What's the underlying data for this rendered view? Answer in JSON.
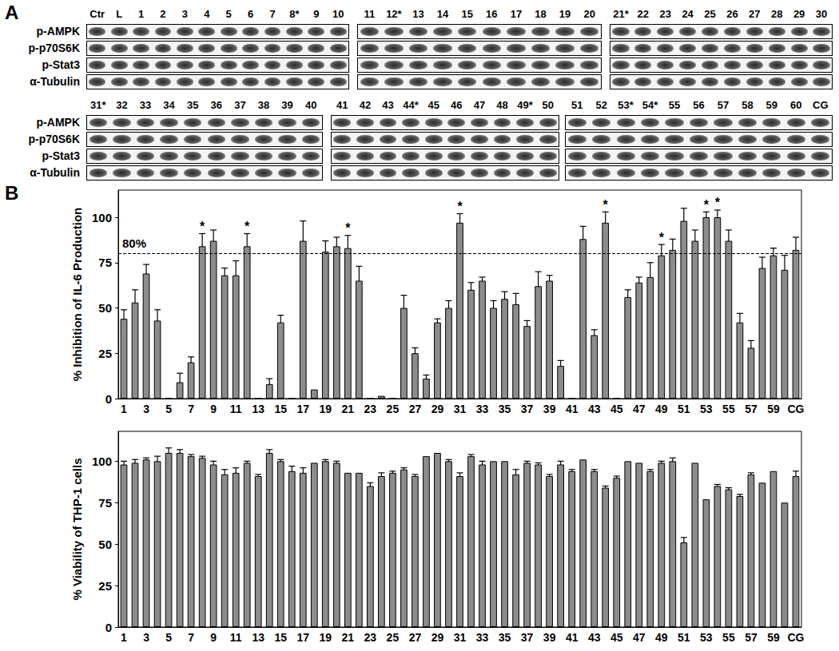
{
  "panel_labels": [
    "A",
    "B"
  ],
  "blot": {
    "proteins": [
      "p-AMPK",
      "p-p70S6K",
      "p-Stat3",
      "α-Tubulin"
    ],
    "rows": [
      [
        [
          "Ctr",
          "L",
          "1",
          "2",
          "3",
          "4",
          "5",
          "6",
          "7",
          "8*",
          "9",
          "10"
        ],
        [
          "11",
          "12*",
          "13",
          "14",
          "15",
          "16",
          "17",
          "18",
          "19",
          "20"
        ],
        [
          "21*",
          "22",
          "23",
          "24",
          "25",
          "26",
          "27",
          "28",
          "29",
          "30"
        ]
      ],
      [
        [
          "31*",
          "32",
          "33",
          "34",
          "35",
          "36",
          "37",
          "38",
          "39",
          "40"
        ],
        [
          "41",
          "42",
          "43",
          "44*",
          "45",
          "46",
          "47",
          "48",
          "49*",
          "50"
        ],
        [
          "51",
          "52",
          "53*",
          "54*",
          "55",
          "56",
          "57",
          "58",
          "59",
          "60",
          "CG"
        ]
      ]
    ]
  },
  "chart_data": [
    {
      "type": "bar",
      "y_label": "% Inhibition of IL-6 Production",
      "categories": [
        "1",
        null,
        "3",
        null,
        "5",
        null,
        "7",
        null,
        "9",
        null,
        "11",
        null,
        "13",
        null,
        "15",
        null,
        "17",
        null,
        "19",
        null,
        "21",
        null,
        "23",
        null,
        "25",
        null,
        "27",
        null,
        "29",
        null,
        "31",
        null,
        "33",
        null,
        "35",
        null,
        "37",
        null,
        "39",
        null,
        "41",
        null,
        "43",
        null,
        "45",
        null,
        "47",
        null,
        "49",
        null,
        "51",
        null,
        "53",
        null,
        "55",
        null,
        "57",
        null,
        "59",
        null,
        "CG"
      ],
      "values": [
        44,
        53,
        69,
        43,
        0,
        9,
        20,
        84,
        87,
        68,
        68,
        84,
        0,
        8,
        42,
        0,
        87,
        5,
        81,
        84,
        83,
        65,
        0,
        1.5,
        0,
        50,
        25,
        11,
        42,
        50,
        97,
        60,
        65,
        50,
        55,
        52,
        40,
        62,
        65,
        18,
        0,
        88,
        35,
        97,
        0,
        56,
        64,
        67,
        79,
        82,
        98,
        87,
        100,
        100,
        87,
        42,
        28,
        72,
        79,
        71,
        82
      ],
      "errors": [
        5,
        7,
        5,
        6,
        0,
        5,
        3,
        7,
        6,
        4,
        8,
        7,
        0,
        3,
        4,
        0,
        11,
        0,
        6,
        5,
        7,
        8,
        0,
        0,
        0,
        7,
        3,
        2,
        2,
        4,
        5,
        4,
        2,
        4,
        4,
        6,
        3,
        8,
        3,
        3,
        0,
        7,
        3,
        6,
        0,
        4,
        3,
        8,
        6,
        6,
        7,
        6,
        3,
        4,
        6,
        5,
        4,
        6,
        4,
        8,
        7
      ],
      "marks": [
        null,
        null,
        null,
        null,
        null,
        null,
        null,
        "*",
        null,
        null,
        null,
        "*",
        null,
        null,
        null,
        null,
        null,
        null,
        null,
        null,
        "*",
        null,
        null,
        null,
        null,
        null,
        null,
        null,
        null,
        null,
        "*",
        null,
        null,
        null,
        null,
        null,
        null,
        null,
        null,
        null,
        null,
        null,
        null,
        "*",
        null,
        null,
        null,
        null,
        "*",
        null,
        null,
        null,
        "*",
        "*",
        null,
        null,
        null,
        null,
        null,
        null,
        null
      ],
      "reference_line": {
        "value": 80,
        "label": "80%",
        "line_style": "dashed"
      },
      "color": "#8c8c8c",
      "ylim": [
        0,
        115
      ],
      "yticks": [
        0,
        25,
        50,
        75,
        100
      ],
      "grid": false
    },
    {
      "type": "bar",
      "y_label": "% Viability of THP-1 cells",
      "categories": [
        "1",
        null,
        "3",
        null,
        "5",
        null,
        "7",
        null,
        "9",
        null,
        "11",
        null,
        "13",
        null,
        "15",
        null,
        "17",
        null,
        "19",
        null,
        "21",
        null,
        "23",
        null,
        "25",
        null,
        "27",
        null,
        "29",
        null,
        "31",
        null,
        "33",
        null,
        "35",
        null,
        "37",
        null,
        "39",
        null,
        "41",
        null,
        "43",
        null,
        "45",
        null,
        "47",
        null,
        "49",
        null,
        "51",
        null,
        "53",
        null,
        "55",
        null,
        "57",
        null,
        "59",
        null,
        "CG"
      ],
      "values": [
        98,
        99,
        101,
        100,
        105,
        105,
        103,
        102,
        98,
        92,
        93,
        99,
        91,
        105,
        100,
        94,
        93,
        99,
        100,
        99,
        93,
        93,
        85,
        91,
        93,
        95,
        91,
        103,
        105,
        100,
        91,
        103,
        98,
        100,
        100,
        92,
        99,
        98,
        91,
        98,
        94,
        101,
        94,
        84,
        90,
        100,
        99,
        94,
        99,
        100,
        51,
        99,
        77,
        85,
        83,
        79,
        92,
        87,
        94,
        75,
        91
      ],
      "errors": [
        2,
        2,
        1,
        3,
        3,
        2,
        1,
        1,
        2,
        3,
        3,
        1,
        1,
        2,
        1,
        3,
        3,
        0,
        1,
        1,
        0,
        0,
        2,
        2,
        1,
        1,
        1,
        0,
        0,
        1,
        2,
        1,
        2,
        0,
        0,
        3,
        1,
        1,
        1,
        2,
        1,
        0,
        1,
        1,
        1,
        0,
        0,
        1,
        1,
        2,
        3,
        0,
        0,
        1,
        1,
        1,
        1,
        0,
        0,
        0,
        3
      ],
      "color": "#8c8c8c",
      "ylim": [
        0,
        118
      ],
      "yticks": [
        0,
        25,
        50,
        75,
        100
      ],
      "grid": false
    }
  ]
}
